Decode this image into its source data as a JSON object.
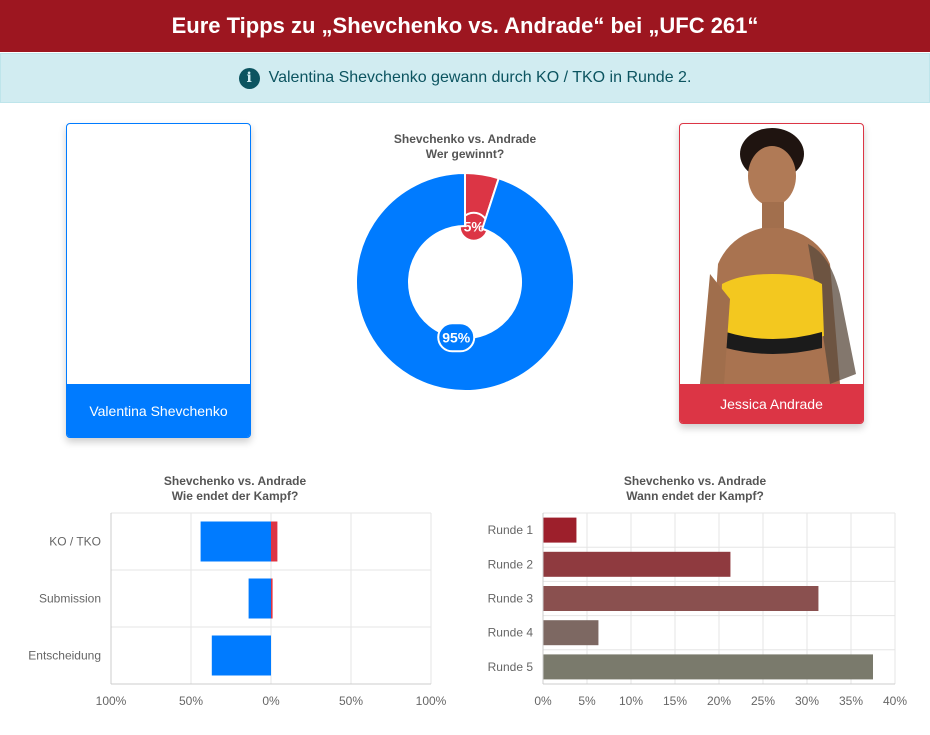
{
  "header": {
    "title": "Eure Tipps zu „Shevchenko vs. Andrade“ bei „UFC 261“"
  },
  "alert": {
    "icon": "info-circle-icon",
    "text": "Valentina Shevchenko gewann durch KO / TKO in Runde 2."
  },
  "fighters": {
    "left": {
      "name": "Valentina Shevchenko",
      "color": "#007bff"
    },
    "right": {
      "name": "Jessica Andrade",
      "color": "#dc3545"
    }
  },
  "chart_data": [
    {
      "type": "pie",
      "title": "Shevchenko vs. Andrade",
      "subtitle": "Wer gewinnt?",
      "slices": [
        {
          "name": "Jessica Andrade",
          "value": 5,
          "label": "5%",
          "color": "#dc3545"
        },
        {
          "name": "Valentina Shevchenko",
          "value": 95,
          "label": "95%",
          "color": "#007bff"
        }
      ]
    },
    {
      "type": "bar",
      "title": "Shevchenko vs. Andrade",
      "subtitle": "Wie endet der Kampf?",
      "categories": [
        "KO / TKO",
        "Submission",
        "Entscheidung"
      ],
      "series": [
        {
          "name": "Valentina Shevchenko",
          "values": [
            44,
            14,
            37
          ],
          "color": "#007bff"
        },
        {
          "name": "Jessica Andrade",
          "values": [
            4,
            1,
            0
          ],
          "color": "#dc3545"
        }
      ],
      "xticks": [
        "100%",
        "50%",
        "0%",
        "50%",
        "100%"
      ],
      "xlim": [
        -100,
        100
      ]
    },
    {
      "type": "bar",
      "title": "Shevchenko vs. Andrade",
      "subtitle": "Wann endet der Kampf?",
      "categories": [
        "Runde 1",
        "Runde 2",
        "Runde 3",
        "Runde 4",
        "Runde 5"
      ],
      "values": [
        3.8,
        21.3,
        31.3,
        6.3,
        37.5
      ],
      "colors": [
        "#9d1f2b",
        "#8f3a3f",
        "#8a504f",
        "#7d6862",
        "#7a7a6c"
      ],
      "xticks": [
        "0%",
        "5%",
        "10%",
        "15%",
        "20%",
        "25%",
        "30%",
        "35%",
        "40%"
      ],
      "xlim": [
        0,
        40
      ]
    }
  ]
}
